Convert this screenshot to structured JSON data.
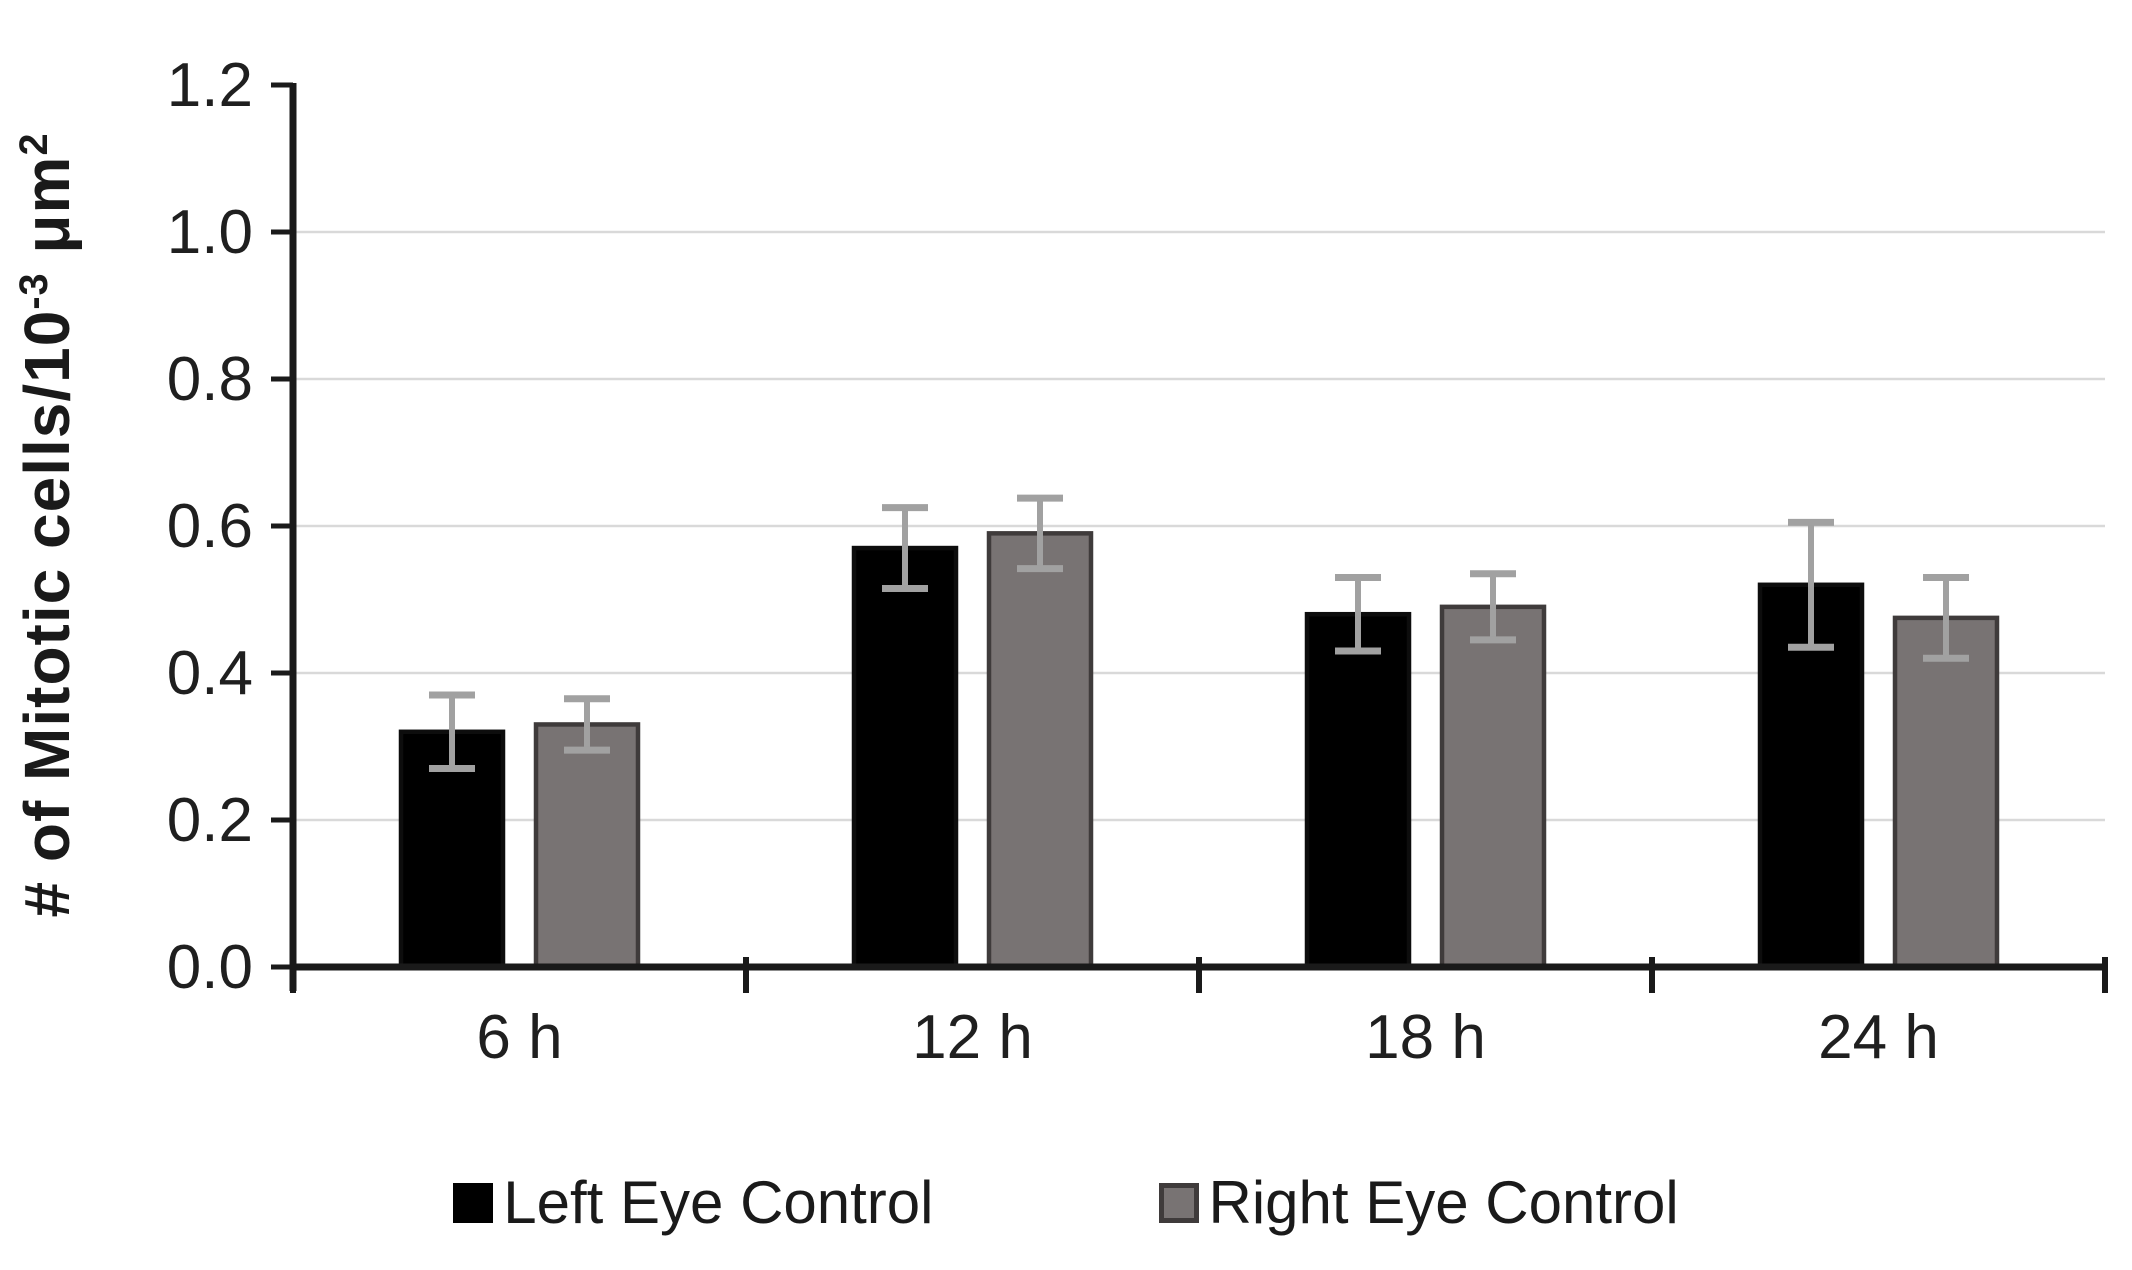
{
  "chart_data": {
    "type": "bar",
    "title": "",
    "categories": [
      "6 h",
      "12 h",
      "18 h",
      "24 h"
    ],
    "series": [
      {
        "name": "Left Eye Control",
        "color": "#000000",
        "border_color": "#0d0d0d",
        "values": [
          0.32,
          0.57,
          0.48,
          0.52
        ],
        "errors": [
          0.05,
          0.055,
          0.05,
          0.085
        ]
      },
      {
        "name": "Right Eye Control",
        "color": "#787373",
        "border_color": "#3f3b3b",
        "values": [
          0.33,
          0.59,
          0.49,
          0.475
        ],
        "errors": [
          0.035,
          0.048,
          0.045,
          0.055
        ]
      }
    ],
    "ylabel": "# of Mitotic cells/10⁻³ μm²",
    "xlabel": "",
    "y_ticks": [
      "0.0",
      "0.2",
      "0.4",
      "0.6",
      "0.8",
      "1.0",
      "1.2"
    ],
    "ylim": [
      0,
      1.2
    ],
    "grid": true,
    "legend_position": "bottom",
    "error_bar_color": "#a1a1a1",
    "gridline_color": "#d9d9d9",
    "axis_color": "#1a1a1a",
    "tick_label_color": "#1f1f1f"
  },
  "y_title": {
    "main": "# of Mitotic cells/10",
    "sup1": "-3",
    "mid": " μm",
    "sup2": "2"
  }
}
